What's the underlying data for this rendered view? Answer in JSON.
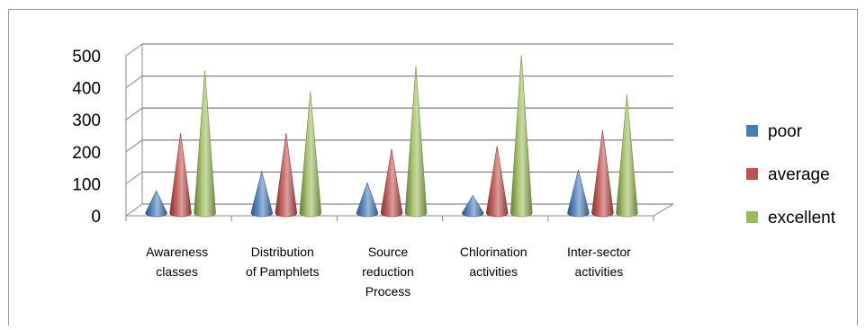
{
  "chart_data": {
    "type": "bar",
    "style": "3d-cone",
    "categories": [
      [
        "Awareness",
        "classes"
      ],
      [
        "Distribution",
        "of Pamphlets"
      ],
      [
        "Source",
        "reduction",
        "Process"
      ],
      [
        "Chlorination",
        "activities"
      ],
      [
        "Inter-sector",
        "activities"
      ]
    ],
    "series": [
      {
        "name": "poor",
        "color": "#4a7ebb",
        "values": [
          70,
          130,
          95,
          55,
          135
        ]
      },
      {
        "name": "average",
        "color": "#c0504d",
        "values": [
          250,
          250,
          200,
          210,
          260
        ]
      },
      {
        "name": "excellent",
        "color": "#9bbb59",
        "values": [
          445,
          380,
          460,
          495,
          370
        ]
      }
    ],
    "y_ticks": [
      "0",
      "100",
      "200",
      "300",
      "400",
      "500"
    ],
    "ylim": [
      0,
      500
    ],
    "grid": true,
    "legend": "right"
  }
}
